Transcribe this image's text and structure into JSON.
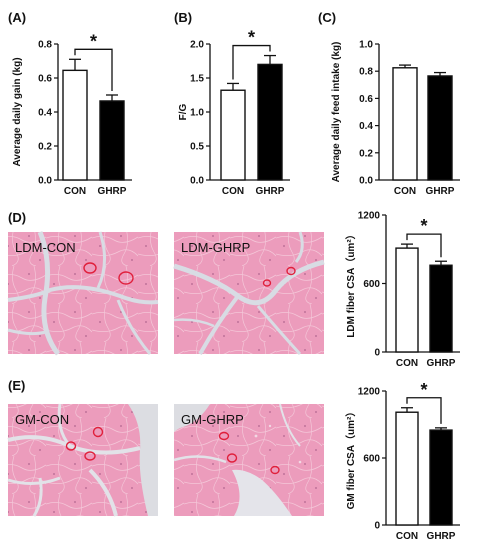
{
  "panels": [
    {
      "letter": "(A)"
    },
    {
      "letter": "(B)"
    },
    {
      "letter": "(C)"
    },
    {
      "letter": "(D)"
    },
    {
      "letter": "(E)"
    }
  ],
  "images": {
    "d_left": "LDM-CON",
    "d_right": "LDM-GHRP",
    "e_left": "GM-CON",
    "e_right": "GM-GHRP"
  },
  "colors": {
    "con_fill": "#ffffff",
    "ghrp_fill": "#000000",
    "tissue": "#e895b5",
    "tissue_light": "#efb3cb",
    "background_gap": "#d7d8de",
    "outline": "#e0203c"
  },
  "chart_data": [
    {
      "type": "bar",
      "panel": "(A)",
      "categories": [
        "CON",
        "GHRP"
      ],
      "values": [
        0.645,
        0.465
      ],
      "errors": [
        0.065,
        0.035
      ],
      "ylabel": "Average daily gain (kg)",
      "ylim": [
        0,
        0.8
      ],
      "yticks": [
        "0.0",
        "0.2",
        "0.4",
        "0.6",
        "0.8"
      ],
      "significance": "*"
    },
    {
      "type": "bar",
      "panel": "(B)",
      "categories": [
        "CON",
        "GHRP"
      ],
      "values": [
        1.32,
        1.7
      ],
      "errors": [
        0.1,
        0.13
      ],
      "ylabel": "F/G",
      "ylim": [
        0,
        2.0
      ],
      "yticks": [
        "0.0",
        "0.5",
        "1.0",
        "1.5",
        "2.0"
      ],
      "significance": "*"
    },
    {
      "type": "bar",
      "panel": "(C)",
      "categories": [
        "CON",
        "GHRP"
      ],
      "values": [
        0.825,
        0.765
      ],
      "errors": [
        0.02,
        0.025
      ],
      "ylabel": "Average daily feed intake (kg)",
      "ylim": [
        0,
        1.0
      ],
      "yticks": [
        "0.0",
        "0.2",
        "0.4",
        "0.6",
        "0.8",
        "1.0"
      ],
      "significance": ""
    },
    {
      "type": "bar",
      "panel": "(D)",
      "categories": [
        "CON",
        "GHRP"
      ],
      "values": [
        910,
        760
      ],
      "errors": [
        35,
        35
      ],
      "ylabel": "LDM fiber CSA（um²）",
      "ylim": [
        0,
        1200
      ],
      "yticks": [
        "0",
        "600",
        "1200"
      ],
      "significance": "*"
    },
    {
      "type": "bar",
      "panel": "(E)",
      "categories": [
        "CON",
        "GHRP"
      ],
      "values": [
        1010,
        850
      ],
      "errors": [
        40,
        20
      ],
      "ylabel": "GM fiber CSA（um²）",
      "ylim": [
        0,
        1200
      ],
      "yticks": [
        "0",
        "600",
        "1200"
      ],
      "significance": "*"
    }
  ]
}
